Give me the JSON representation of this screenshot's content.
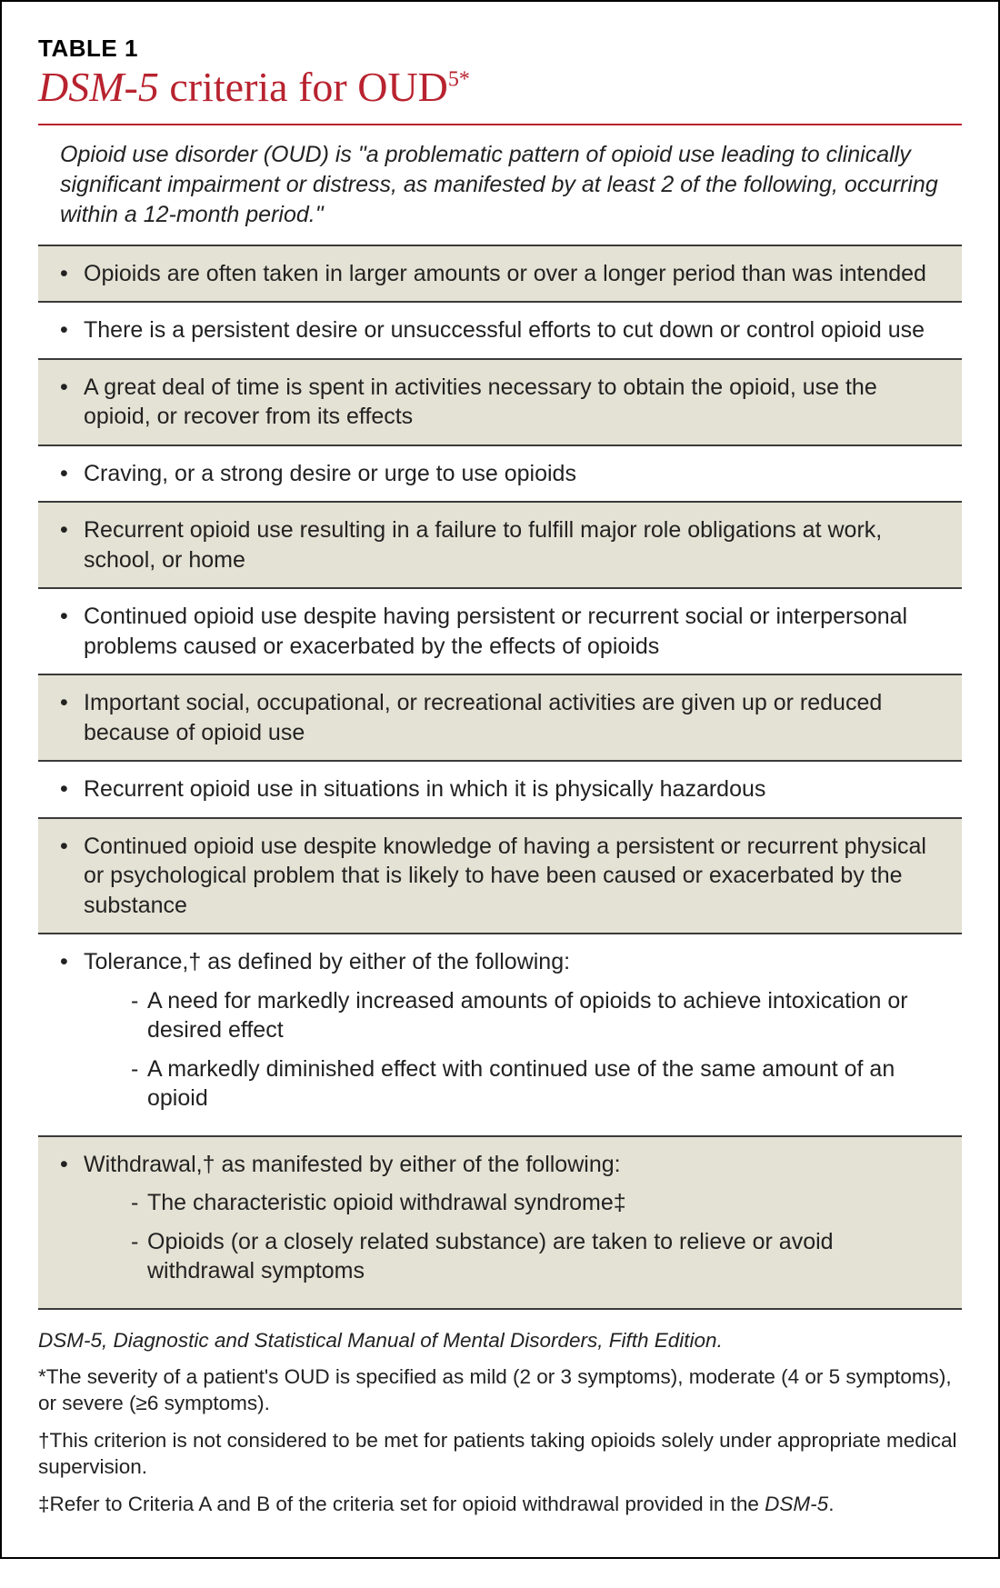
{
  "label": "TABLE 1",
  "title_dsm": "DSM-5",
  "title_rest": " criteria for OUD",
  "title_sup": "5*",
  "definition": "Opioid use disorder (OUD) is \"a problematic pattern of opioid use leading to clinically significant impairment or distress, as manifested by at least 2 of the following, occurring within a 12-month period.\"",
  "colors": {
    "accent": "#b8232f",
    "row_alt_bg": "#e4e2d4",
    "border": "#3a3a3a",
    "text": "#222222",
    "page_border": "#000000",
    "background": "#ffffff"
  },
  "typography": {
    "title_family": "Minion Pro serif",
    "title_size_pt": 34,
    "body_family": "Myriad Pro sans-serif",
    "body_size_pt": 19,
    "footnote_size_pt": 17
  },
  "criteria": [
    {
      "text": "Opioids are often taken in larger amounts or over a longer period than was intended"
    },
    {
      "text": "There is a persistent desire or unsuccessful efforts to cut down or control opioid use"
    },
    {
      "text": "A great deal of time is spent in activities necessary to obtain the opioid, use the opioid, or recover from its effects"
    },
    {
      "text": "Craving, or a strong desire or urge to use opioids"
    },
    {
      "text": "Recurrent opioid use resulting in a failure to fulfill major role obligations at work, school, or home"
    },
    {
      "text": "Continued opioid use despite having persistent or recurrent social or interpersonal problems caused or exacerbated by the effects of opioids"
    },
    {
      "text": "Important social, occupational, or recreational activities are given up or reduced because of opioid use"
    },
    {
      "text": "Recurrent opioid use in situations in which it is physically hazardous"
    },
    {
      "text": "Continued opioid use despite knowledge of having a persistent or recurrent physical or psychological problem that is likely to have been caused or exacerbated by the substance"
    },
    {
      "text": "Tolerance,† as defined by either of the following:",
      "subitems": [
        "A need for markedly increased amounts of opioids to achieve intoxication or desired effect",
        "A markedly diminished effect with continued use of the same amount of an opioid"
      ]
    },
    {
      "text": "Withdrawal,† as manifested by either of the following:",
      "subitems": [
        "The characteristic opioid withdrawal syndrome‡",
        "Opioids (or a closely related substance) are taken to relieve or avoid withdrawal symptoms"
      ]
    }
  ],
  "footnotes": {
    "abbrev_prefix": "DSM-5,",
    "abbrev_rest": " Diagnostic and Statistical Manual of Mental Disorders, Fifth Edition.",
    "star": "*The severity of a patient's OUD is specified as mild (2 or 3 symptoms), moderate (4 or 5 symptoms), or severe (≥6 symptoms).",
    "dagger": "†This criterion is not considered to be met for patients taking opioids solely under appropriate medical supervision.",
    "ddagger_pre": "‡Refer to Criteria A and B of the criteria set for opioid withdrawal provided in the ",
    "ddagger_dsm": "DSM-5",
    "ddagger_post": "."
  }
}
